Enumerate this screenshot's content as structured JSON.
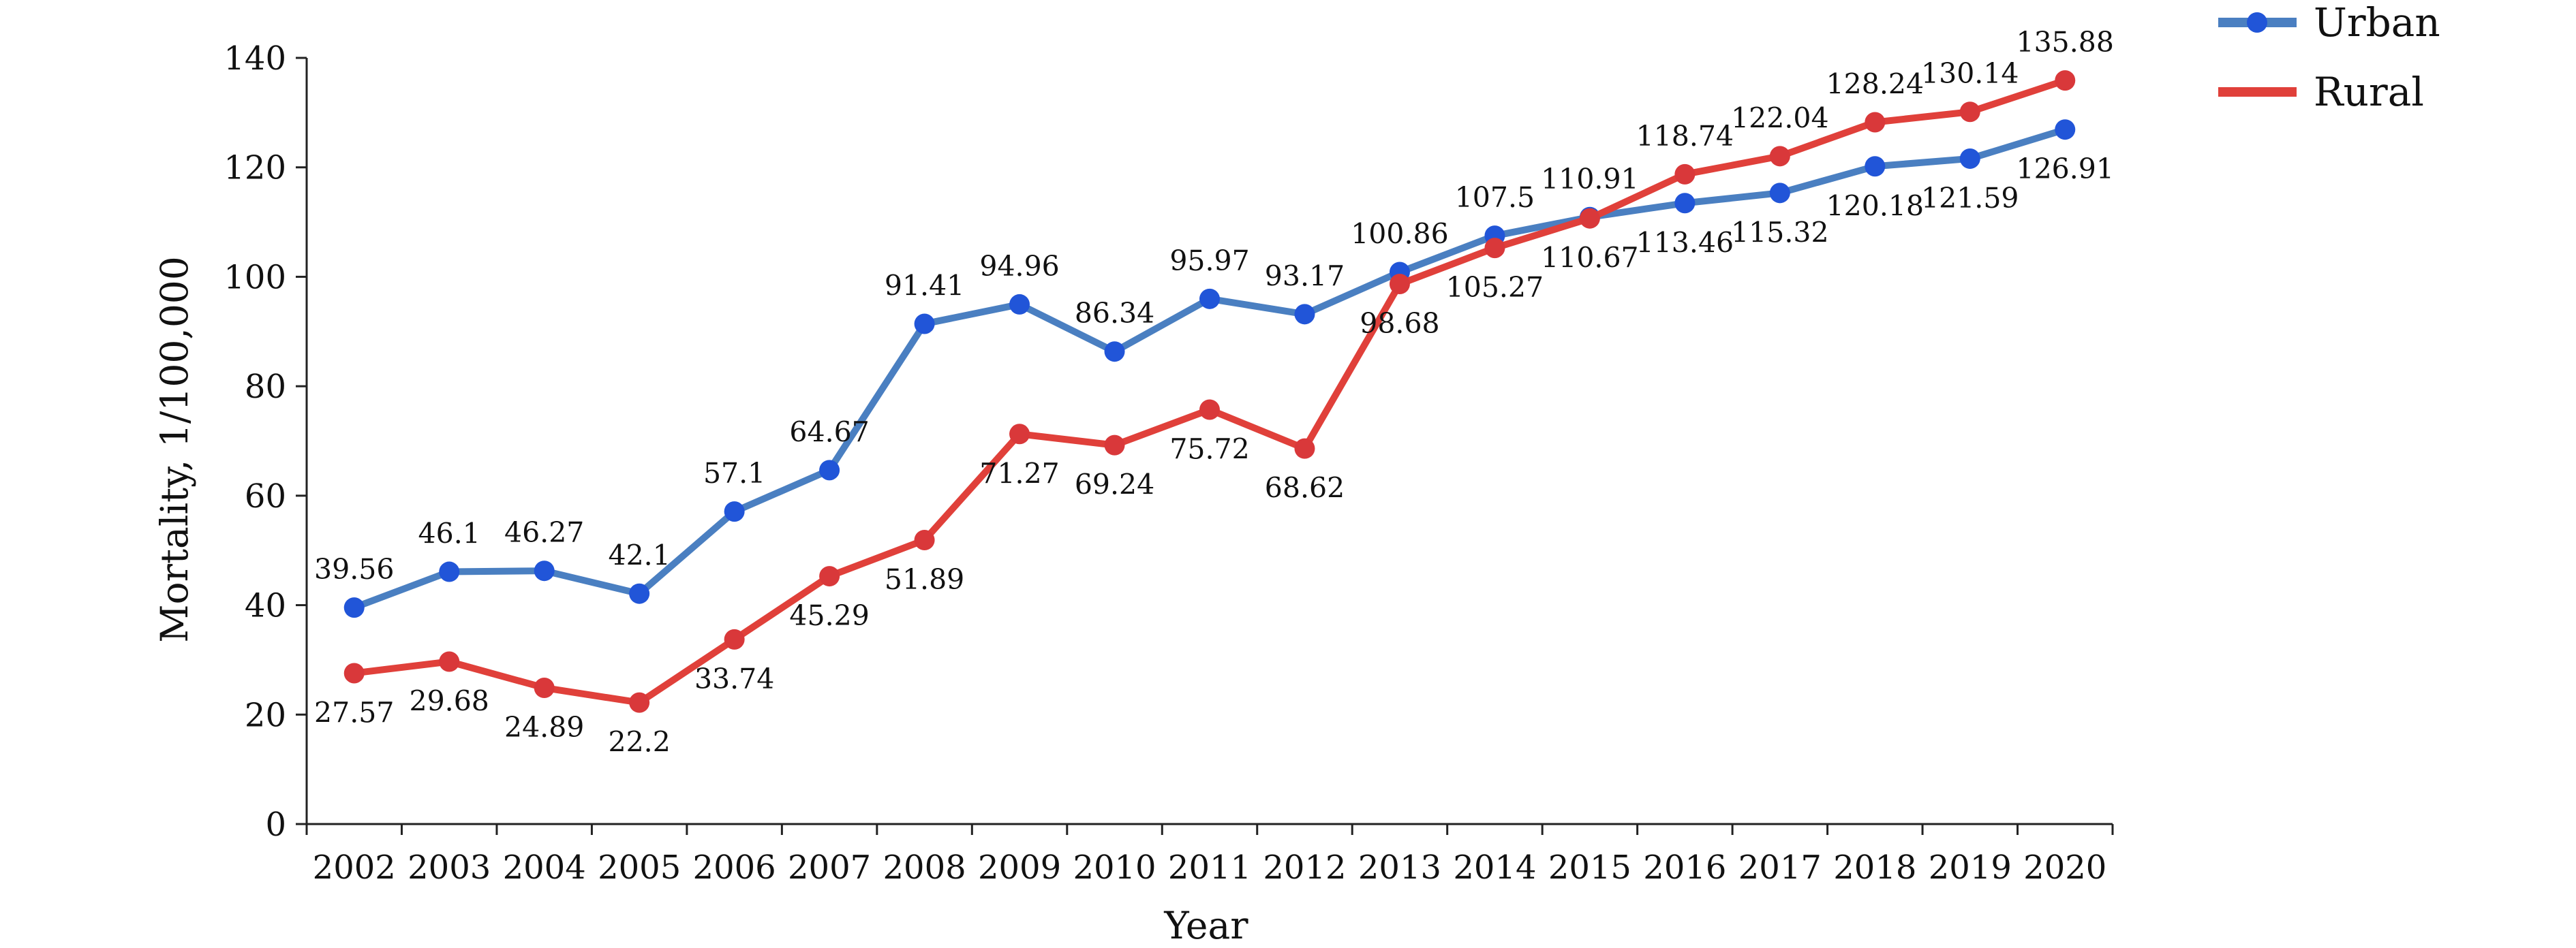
{
  "chart_data": {
    "type": "line",
    "title": "",
    "xlabel": "Year",
    "ylabel": "Mortality, 1/100,000",
    "ylim": [
      0,
      140
    ],
    "yticks": [
      0,
      20,
      40,
      60,
      80,
      100,
      120,
      140
    ],
    "grid": false,
    "legend_position": "top-right",
    "categories": [
      "2002",
      "2003",
      "2004",
      "2005",
      "2006",
      "2007",
      "2008",
      "2009",
      "2010",
      "2011",
      "2012",
      "2013",
      "2014",
      "2015",
      "2016",
      "2017",
      "2018",
      "2019",
      "2020"
    ],
    "series": [
      {
        "name": "Urban",
        "color": "#4a7fc1",
        "marker_color": "#2155d8",
        "values": [
          39.56,
          46.1,
          46.27,
          42.1,
          57.1,
          64.67,
          91.41,
          94.96,
          86.34,
          95.97,
          93.17,
          100.86,
          107.5,
          110.91,
          113.46,
          115.32,
          120.18,
          121.59,
          126.91
        ],
        "labels": [
          "39.56",
          "46.1",
          "46.27",
          "42.1",
          "57.1",
          "64.67",
          "91.41",
          "94.96",
          "86.34",
          "95.97",
          "93.17",
          "100.86",
          "107.5",
          "110.91",
          "113.46",
          "115.32",
          "120.18",
          "121.59",
          "126.91"
        ],
        "label_pos": [
          "above",
          "above",
          "above",
          "above",
          "above",
          "above",
          "above",
          "above",
          "above",
          "above",
          "above",
          "above",
          "above",
          "above",
          "below",
          "below",
          "below",
          "below",
          "below"
        ]
      },
      {
        "name": "Rural",
        "color": "#e0403a",
        "marker_color": "#d9383a",
        "values": [
          27.57,
          29.68,
          24.89,
          22.2,
          33.74,
          45.29,
          51.89,
          71.27,
          69.24,
          75.72,
          68.62,
          98.68,
          105.27,
          110.67,
          118.74,
          122.04,
          128.24,
          130.14,
          135.88
        ],
        "labels": [
          "27.57",
          "29.68",
          "24.89",
          "22.2",
          "33.74",
          "45.29",
          "51.89",
          "71.27",
          "69.24",
          "75.72",
          "68.62",
          "98.68",
          "105.27",
          "110.67",
          "118.74",
          "122.04",
          "128.24",
          "130.14",
          "135.88"
        ],
        "label_pos": [
          "below",
          "below",
          "below",
          "below",
          "below",
          "below",
          "below",
          "below",
          "below",
          "below",
          "below",
          "below",
          "below",
          "below",
          "above",
          "above",
          "above",
          "above",
          "above"
        ]
      }
    ]
  }
}
